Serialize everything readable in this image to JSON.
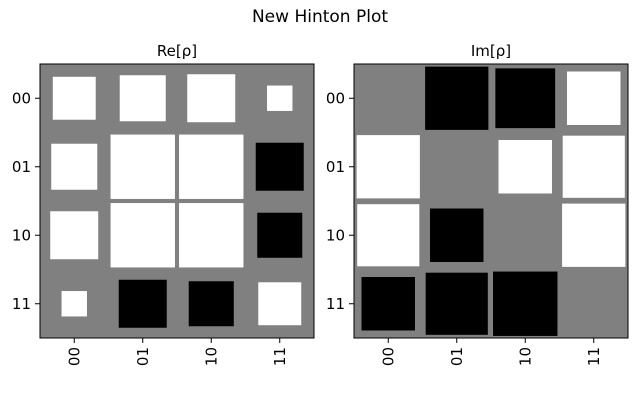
{
  "chart_data": {
    "suptitle": "New Hinton Plot",
    "labels": [
      "00",
      "01",
      "10",
      "11"
    ],
    "colors": {
      "background": "#808080",
      "positive": "#ffffff",
      "negative": "#000000"
    },
    "charts": [
      {
        "type": "heatmap",
        "title": "Re[ρ]",
        "matrix": [
          [
            0.2,
            0.23,
            0.25,
            0.07
          ],
          [
            0.23,
            0.45,
            0.45,
            -0.25
          ],
          [
            0.25,
            0.45,
            0.45,
            -0.22
          ],
          [
            0.07,
            -0.25,
            -0.22,
            0.2
          ]
        ]
      },
      {
        "type": "heatmap",
        "title": "Im[ρ]",
        "matrix": [
          [
            0.0,
            -0.28,
            -0.25,
            0.2
          ],
          [
            0.28,
            0.0,
            0.2,
            0.27
          ],
          [
            0.27,
            -0.2,
            0.0,
            0.28
          ],
          [
            -0.2,
            -0.27,
            -0.29,
            0.0
          ]
        ]
      }
    ]
  }
}
